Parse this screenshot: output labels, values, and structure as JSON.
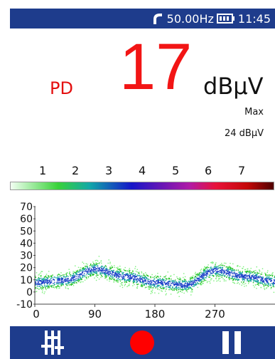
{
  "status": {
    "frequency": "50.00Hz",
    "time": "11:45",
    "icons": [
      "coupling-sensor-icon",
      "battery-icon"
    ]
  },
  "measurement": {
    "mode": "PD",
    "value": "17",
    "unit": "dBµV",
    "max_label": "Max",
    "max_value": "24 dBµV"
  },
  "scale": {
    "labels": [
      "1",
      "2",
      "3",
      "4",
      "5",
      "6",
      "7"
    ]
  },
  "chart_data": {
    "type": "scatter",
    "title": "",
    "xlabel": "",
    "ylabel": "",
    "xlim": [
      0,
      360
    ],
    "ylim": [
      -10,
      70
    ],
    "x_ticks": [
      "0",
      "90",
      "180",
      "270"
    ],
    "y_ticks": [
      "70",
      "60",
      "50",
      "40",
      "30",
      "20",
      "10",
      "0",
      "-10"
    ],
    "density_profile": [
      {
        "phase": 0,
        "level": 8
      },
      {
        "phase": 45,
        "level": 10
      },
      {
        "phase": 90,
        "level": 19
      },
      {
        "phase": 135,
        "level": 13
      },
      {
        "phase": 180,
        "level": 8
      },
      {
        "phase": 225,
        "level": 6
      },
      {
        "phase": 270,
        "level": 18
      },
      {
        "phase": 315,
        "level": 13
      },
      {
        "phase": 360,
        "level": 9
      }
    ]
  },
  "colors": {
    "bar": "#1e3c8c",
    "accent_red": "#f21515",
    "record_red": "#ff0000"
  },
  "controls": {
    "icons": [
      "settings-sliders-icon",
      "record-icon",
      "pause-icon"
    ]
  }
}
